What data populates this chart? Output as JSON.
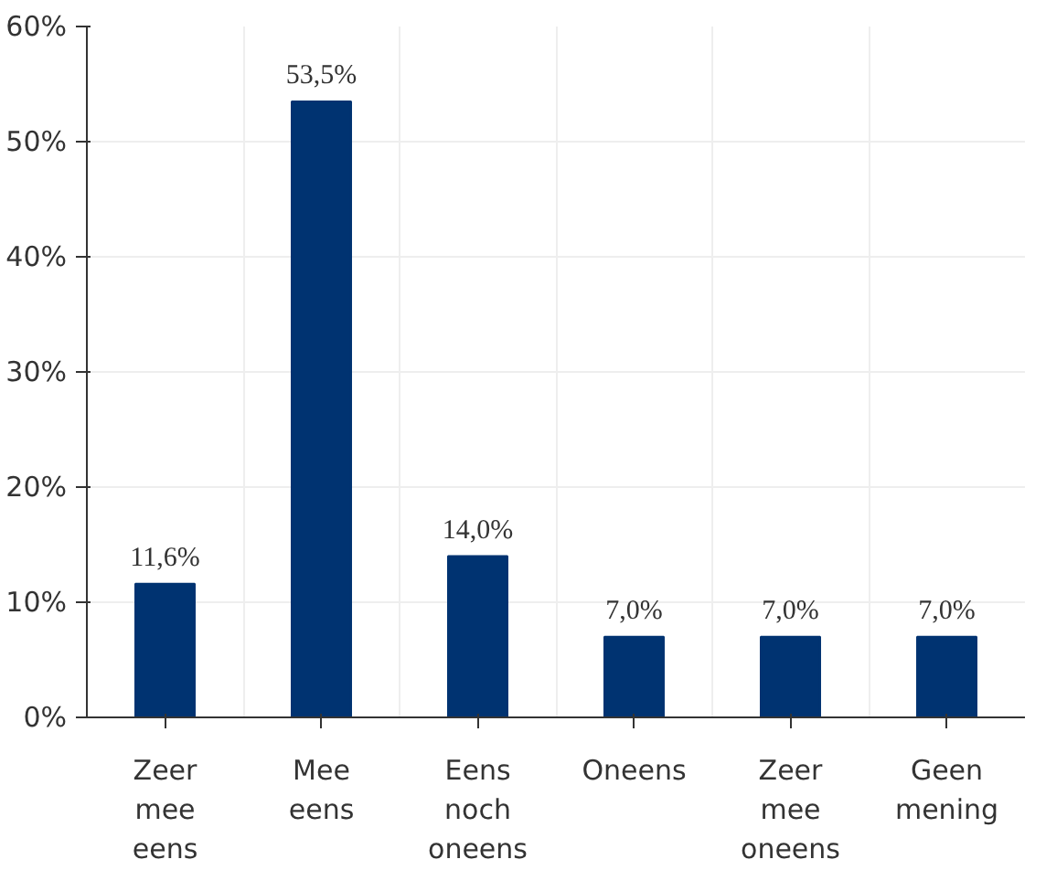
{
  "chart_data": {
    "type": "bar",
    "categories": [
      "Zeer mee eens",
      "Mee eens",
      "Eens noch oneens",
      "Oneens",
      "Zeer mee oneens",
      "Geen mening"
    ],
    "values": [
      11.6,
      53.5,
      14.0,
      7.0,
      7.0,
      7.0
    ],
    "value_labels": [
      "11,6%",
      "53,5%",
      "14,0%",
      "7,0%",
      "7,0%",
      "7,0%"
    ],
    "color": "#003371",
    "ylim": [
      0,
      60
    ],
    "yticks": [
      {
        "value": 0,
        "label": "0%"
      },
      {
        "value": 10,
        "label": "10%"
      },
      {
        "value": 20,
        "label": "20%"
      },
      {
        "value": 30,
        "label": "30%"
      },
      {
        "value": 40,
        "label": "40%"
      },
      {
        "value": 50,
        "label": "50%"
      },
      {
        "value": 60,
        "label": "60%"
      }
    ],
    "grid": true
  }
}
